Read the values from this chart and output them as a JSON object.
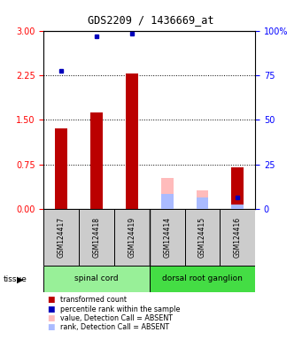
{
  "title": "GDS2209 / 1436669_at",
  "samples": [
    "GSM124417",
    "GSM124418",
    "GSM124419",
    "GSM124414",
    "GSM124415",
    "GSM124416"
  ],
  "red_values": [
    1.35,
    1.63,
    2.28,
    null,
    null,
    0.7
  ],
  "blue_values": [
    2.32,
    2.9,
    2.95,
    null,
    null,
    null
  ],
  "blue_dots_present": [
    true,
    true,
    true,
    false,
    false,
    false
  ],
  "absent_pink_values": [
    null,
    null,
    null,
    0.52,
    0.32,
    null
  ],
  "absent_lb_values": [
    null,
    null,
    null,
    0.25,
    0.2,
    0.08
  ],
  "gsm124416_blue_dot": 0.2,
  "tissue_groups": [
    {
      "label": "spinal cord",
      "start": 0,
      "end": 3,
      "color": "#98F098"
    },
    {
      "label": "dorsal root ganglion",
      "start": 3,
      "end": 6,
      "color": "#44DD44"
    }
  ],
  "ylim_left": [
    0,
    3
  ],
  "ylim_right": [
    0,
    100
  ],
  "yticks_left": [
    0,
    0.75,
    1.5,
    2.25,
    3
  ],
  "yticks_right": [
    0,
    25,
    50,
    75,
    100
  ],
  "bar_color_red": "#BB0000",
  "bar_color_blue": "#0000BB",
  "bar_color_pink": "#FFBBBB",
  "bar_color_lightblue": "#AABBFF",
  "legend_items": [
    {
      "label": "transformed count",
      "color": "#BB0000"
    },
    {
      "label": "percentile rank within the sample",
      "color": "#0000BB"
    },
    {
      "label": "value, Detection Call = ABSENT",
      "color": "#FFBBBB"
    },
    {
      "label": "rank, Detection Call = ABSENT",
      "color": "#AABBFF"
    }
  ]
}
